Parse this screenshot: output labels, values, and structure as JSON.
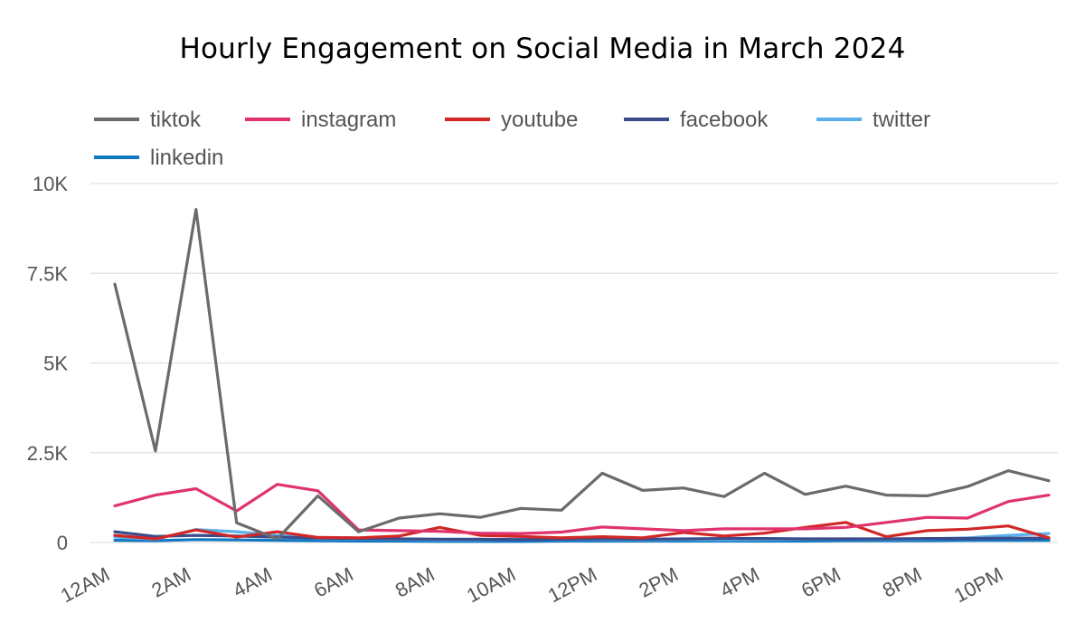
{
  "chart_data": {
    "type": "line",
    "title": "Hourly Engagement on Social Media in March 2024",
    "xlabel": "",
    "ylabel": "",
    "ylim": [
      0,
      10000
    ],
    "yticks": [
      0,
      2500,
      5000,
      7500,
      10000
    ],
    "ytick_labels": [
      "0",
      "2.5K",
      "5K",
      "7.5K",
      "10K"
    ],
    "categories": [
      "12AM",
      "1AM",
      "2AM",
      "3AM",
      "4AM",
      "5AM",
      "6AM",
      "7AM",
      "8AM",
      "9AM",
      "10AM",
      "11AM",
      "12PM",
      "1PM",
      "2PM",
      "3PM",
      "4PM",
      "5PM",
      "6PM",
      "7PM",
      "8PM",
      "9PM",
      "10PM",
      "11PM"
    ],
    "xtick_labels": [
      "12AM",
      "2AM",
      "4AM",
      "6AM",
      "8AM",
      "10AM",
      "12PM",
      "2PM",
      "4PM",
      "6PM",
      "8PM",
      "10PM"
    ],
    "legend_position": "top-left",
    "series": [
      {
        "name": "tiktok",
        "color": "#6b6b6f",
        "values": [
          7200,
          2550,
          9280,
          550,
          100,
          1300,
          300,
          680,
          800,
          700,
          950,
          900,
          1930,
          1450,
          1520,
          1280,
          1930,
          1340,
          1570,
          1320,
          1300,
          1560,
          2000,
          1720
        ]
      },
      {
        "name": "instagram",
        "color": "#e0336e",
        "values": [
          1020,
          1320,
          1500,
          880,
          1620,
          1440,
          350,
          330,
          310,
          260,
          250,
          290,
          430,
          380,
          330,
          380,
          380,
          380,
          420,
          560,
          700,
          680,
          1140,
          1320
        ]
      },
      {
        "name": "youtube",
        "color": "#d12727",
        "values": [
          200,
          100,
          350,
          150,
          300,
          140,
          130,
          180,
          420,
          200,
          170,
          130,
          160,
          130,
          280,
          180,
          260,
          420,
          560,
          160,
          330,
          370,
          460,
          130
        ]
      },
      {
        "name": "facebook",
        "color": "#3a4c8c",
        "values": [
          300,
          170,
          200,
          180,
          150,
          120,
          110,
          100,
          90,
          90,
          80,
          90,
          100,
          90,
          100,
          110,
          110,
          100,
          100,
          100,
          110,
          110,
          120,
          120
        ]
      },
      {
        "name": "twitter",
        "color": "#5ab0ea",
        "values": [
          150,
          90,
          360,
          300,
          200,
          110,
          100,
          90,
          70,
          80,
          90,
          80,
          80,
          70,
          80,
          70,
          80,
          90,
          100,
          90,
          100,
          130,
          200,
          250
        ]
      },
      {
        "name": "linkedin",
        "color": "#1077c2",
        "values": [
          60,
          50,
          80,
          70,
          60,
          50,
          40,
          40,
          30,
          30,
          30,
          40,
          40,
          40,
          40,
          40,
          40,
          40,
          50,
          50,
          50,
          60,
          60,
          60
        ]
      }
    ]
  }
}
